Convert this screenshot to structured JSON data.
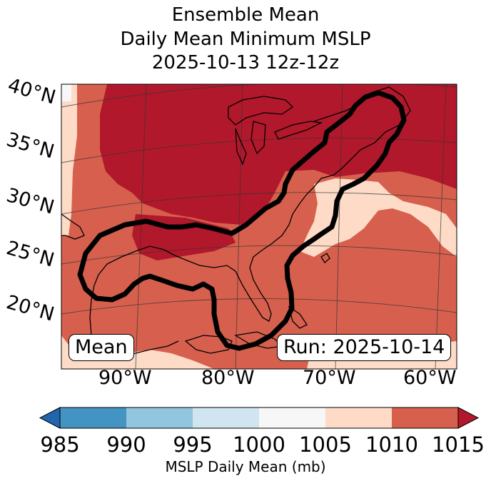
{
  "title": {
    "line1": "Ensemble Mean",
    "line2": "Daily Mean Minimum MSLP",
    "line3": "2025-10-13 12z-12z"
  },
  "map": {
    "lat_labels": [
      "40°N",
      "35°N",
      "30°N",
      "25°N",
      "20°N"
    ],
    "lon_labels": [
      "90°W",
      "80°W",
      "70°W",
      "60°W"
    ],
    "mean_label": "Mean",
    "run_label": "Run: 2025-10-14"
  },
  "colorbar": {
    "ticks": [
      "985",
      "990",
      "995",
      "1000",
      "1005",
      "1010",
      "1015"
    ],
    "label": "MSLP Daily Mean (mb)",
    "bins": [
      {
        "range": "<985",
        "color": "#2166ac"
      },
      {
        "range": "985-990",
        "color": "#4393c3"
      },
      {
        "range": "990-995",
        "color": "#92c5de"
      },
      {
        "range": "995-1000",
        "color": "#d1e5f0"
      },
      {
        "range": "1000-1005",
        "color": "#f7f7f7"
      },
      {
        "range": "1005-1010",
        "color": "#fddbc7"
      },
      {
        "range": "1010-1015",
        "color": "#d6604d"
      },
      {
        "range": ">1015",
        "color": "#b2182b"
      }
    ]
  }
}
